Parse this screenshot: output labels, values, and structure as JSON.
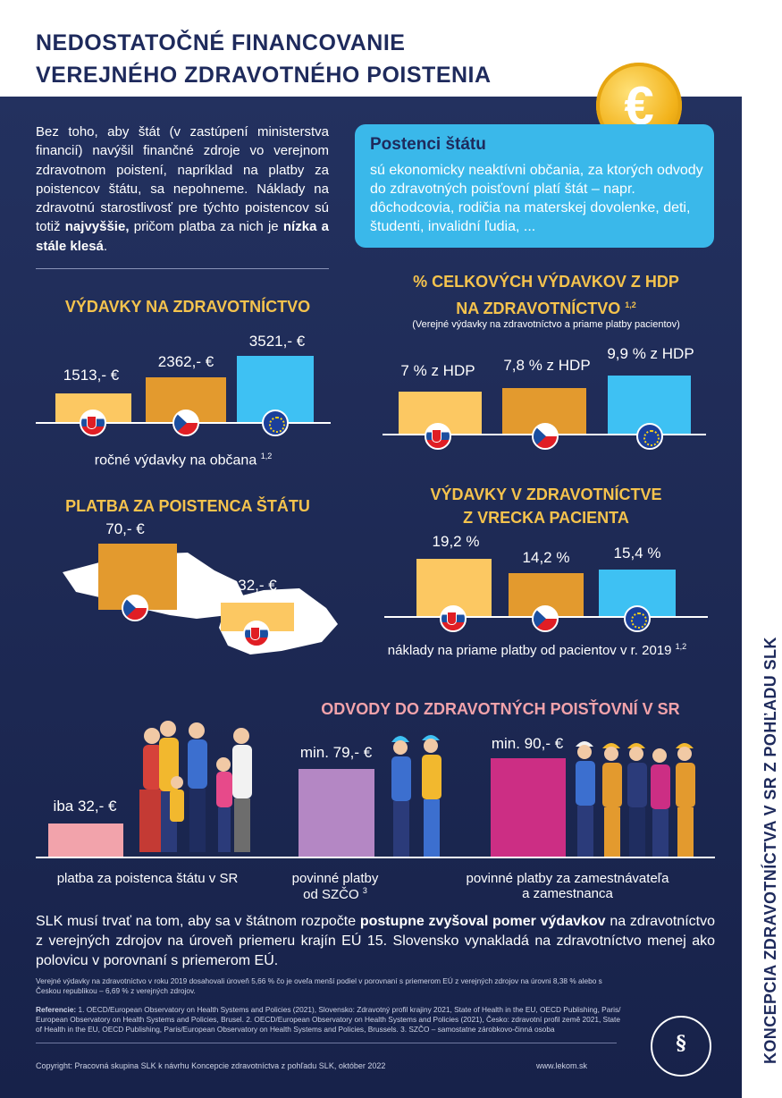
{
  "title_line1": "NEDOSTATOČNÉ FINANCOVANIE",
  "title_line2": "VEREJNÉHO ZDRAVOTNÉHO POISTENIA",
  "coin_symbol": "€",
  "intro": {
    "part1": "Bez toho, aby štát (v zastúpení ministerstva financií) navýšil finančné zdroje vo verejnom zdravotnom poistení, napríklad na platby za poistencov štátu, sa nepohneme. Náklady na zdravotnú starostlivosť pre týchto poistencov sú totiž ",
    "bold1": "najvyššie,",
    "part2": " pričom platba za nich je ",
    "bold2": "nízka a stále klesá",
    "part3": "."
  },
  "box": {
    "title": "Postenci štátu",
    "text": "sú ekonomicky neaktívni občania, za ktorých odvody do zdravotných poisťovní platí štát – napr. dôchodcovia, rodičia na materskej dovolenke, deti, študenti, invalidní ľudia, ..."
  },
  "chart1": {
    "title": "VÝDAVKY NA ZDRAVOTNÍCTVO",
    "values": [
      "1513,- €",
      "2362,- €",
      "3521,- €"
    ],
    "caption": "ročné výdavky na občana",
    "sup": "1,2"
  },
  "chart2": {
    "title1": "% CELKOVÝCH VÝDAVKOV Z HDP",
    "title2": "NA ZDRAVOTNÍCTVO",
    "sup": "1,2",
    "subtitle": "(Verejné výdavky na zdravotníctvo a priame platby pacientov)",
    "values": [
      "7 % z HDP",
      "7,8 % z HDP",
      "9,9 % z HDP"
    ]
  },
  "chart3": {
    "title": "PLATBA ZA POISTENCA ŠTÁTU",
    "values": [
      "70,- €",
      "32,- €"
    ]
  },
  "chart4": {
    "title1": "VÝDAVKY V ZDRAVOTNÍCTVE",
    "title2": "Z VRECKA PACIENTA",
    "values": [
      "19,2 %",
      "14,2 %",
      "15,4 %"
    ],
    "caption": "náklady na priame platby od pacientov v r. 2019",
    "sup": "1,2"
  },
  "chart5": {
    "title": "ODVODY DO ZDRAVOTNÝCH POISŤOVNÍ V SR",
    "values": [
      "iba 32,- €",
      "min. 79,- €",
      "min. 90,- €"
    ],
    "captions": [
      "platba za poistenca štátu v SR",
      "povinné platby od SZČO",
      "povinné platby za zamestnávateľa a zamestnanca"
    ],
    "sup": "3"
  },
  "slk": {
    "part1": "SLK musí trvať na tom, aby sa v štátnom rozpočte ",
    "bold": "postupne zvyšoval pomer výdavkov",
    "part2": " na zdravotníctvo z verejných zdrojov na úroveň priemeru krajín EÚ 15. Slovensko vynakladá na zdravotníctvo menej ako polovicu v porovnaní s priemerom EÚ."
  },
  "note": "Verejné výdavky na zdravotníctvo v roku 2019 dosahovali úroveň 5,66 % čo je oveľa menší podiel v porovnaní s priemerom EÚ z verejných zdrojov na úrovni 8,38 % alebo s Českou republikou – 6,69 % z verejných zdrojov.",
  "references_label": "Referencie:",
  "references": " 1. OECD/European Observatory on Health Systems and Policies (2021), Slovensko: Zdravotný profil krajiny 2021, State of Health in the EU, OECD Publishing, Paris/ European Observatory on Health Systems and Policies, Brusel.  2. OECD/European Observatory on Health Systems and Policies (2021), Česko: zdravotní profil země 2021, State of Health in the EU, OECD Publishing, Paris/European Observatory on Health Systems and Policies, Brussels. 3. SZČO – samostatne zárobkovo-činná osoba",
  "copyright": "Copyright: Pracovná skupina SLK k návrhu Koncepcie zdravotníctva z pohľadu SLK, október 2022",
  "website": "www.lekom.sk",
  "sidebar_text": "KONCEPCIA ZDRAVOTNÍCTVA V SR Z POHĽADU SLK",
  "colors": {
    "navy": "#1e2a5c",
    "yellow": "#fcc862",
    "orange": "#e39a2e",
    "blue": "#3ec1f3",
    "pink": "#f2a3ab",
    "purple": "#b487c4",
    "magenta": "#cc2e84",
    "heading": "#f5c34d",
    "pinkheading": "#f2a3ab"
  },
  "chart_data": [
    {
      "type": "bar",
      "title": "VÝDAVKY NA ZDRAVOTNÍCTVO",
      "categories": [
        "SK",
        "CZ",
        "EU"
      ],
      "values": [
        1513,
        2362,
        3521
      ],
      "ylabel": "ročné výdavky na občana"
    },
    {
      "type": "bar",
      "title": "% CELKOVÝCH VÝDAVKOV Z HDP NA ZDRAVOTNÍCTVO",
      "categories": [
        "SK",
        "CZ",
        "EU"
      ],
      "values": [
        7,
        7.8,
        9.9
      ]
    },
    {
      "type": "bar",
      "title": "PLATBA ZA POISTENCA ŠTÁTU",
      "categories": [
        "CZ",
        "SK"
      ],
      "values": [
        70,
        32
      ]
    },
    {
      "type": "bar",
      "title": "VÝDAVKY V ZDRAVOTNÍCTVE Z VRECKA PACIENTA",
      "categories": [
        "SK",
        "CZ",
        "EU"
      ],
      "values": [
        19.2,
        14.2,
        15.4
      ]
    },
    {
      "type": "bar",
      "title": "ODVODY DO ZDRAVOTNÝCH POISŤOVNÍ V SR",
      "categories": [
        "platba za poistenca štátu v SR",
        "povinné platby od SZČO",
        "povinné platby za zamestnávateľa a zamestnanca"
      ],
      "values": [
        32,
        79,
        90
      ]
    }
  ]
}
